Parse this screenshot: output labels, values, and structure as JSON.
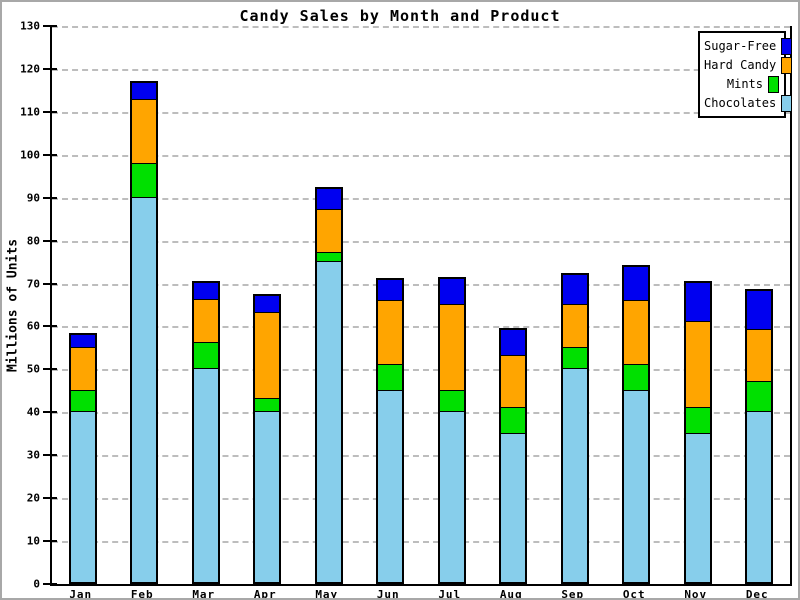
{
  "chart_data": {
    "type": "bar",
    "stacked": true,
    "title": "Candy Sales by Month and Product",
    "ylabel": "Millions of Units",
    "xlabel": "",
    "categories": [
      "Jan",
      "Feb",
      "Mar",
      "Apr",
      "May",
      "Jun",
      "Jul",
      "Aug",
      "Sep",
      "Oct",
      "Nov",
      "Dec"
    ],
    "series": [
      {
        "name": "Chocolates",
        "color": "#87CEEB",
        "values": [
          40,
          90,
          50,
          40,
          75,
          45,
          40,
          35,
          50,
          45,
          35,
          40
        ]
      },
      {
        "name": "Mints",
        "color": "#00E000",
        "values": [
          5,
          8,
          6,
          3,
          2,
          6,
          5,
          6,
          5,
          6,
          6,
          7
        ]
      },
      {
        "name": "Hard Candy",
        "color": "#FFA500",
        "values": [
          10,
          15,
          10,
          20,
          10,
          15,
          20,
          12,
          10,
          15,
          20,
          12
        ]
      },
      {
        "name": "Sugar-Free",
        "color": "#0000F0",
        "values": [
          3,
          4,
          4,
          4,
          5,
          5,
          6,
          6,
          7,
          8,
          9,
          9
        ]
      }
    ],
    "totals": [
      58,
      117,
      70,
      67,
      92,
      71,
      71,
      59,
      72,
      74,
      70,
      68
    ],
    "ylim": [
      0,
      130
    ],
    "ytick_step": 10,
    "grid": true,
    "gridline_color": "#bdbdbd",
    "axis_color": "#000000",
    "legend": {
      "position": "top-right",
      "entries": [
        "Sugar-Free",
        "Hard Candy",
        "Mints",
        "Chocolates"
      ]
    }
  }
}
